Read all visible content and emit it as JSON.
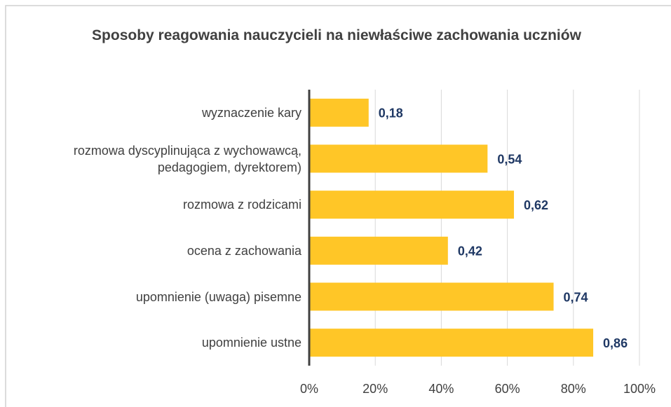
{
  "chart_data": {
    "type": "bar",
    "orientation": "horizontal",
    "title": "Sposoby reagowania nauczycieli na niewłaściwe zachowania uczniów",
    "categories": [
      "wyznaczenie kary",
      "rozmowa dyscyplinująca z wychowawcą, pedagogiem, dyrektorem)",
      "rozmowa z rodzicami",
      "ocena z zachowania",
      "upomnienie (uwaga) pisemne",
      "upomnienie ustne"
    ],
    "values": [
      0.18,
      0.54,
      0.62,
      0.42,
      0.74,
      0.86
    ],
    "value_labels": [
      "0,18",
      "0,54",
      "0,62",
      "0,42",
      "0,74",
      "0,86"
    ],
    "color": "#FFC627",
    "xlim": [
      0,
      1
    ],
    "xticks": [
      {
        "value": 0,
        "label": "0%"
      },
      {
        "value": 0.2,
        "label": "20%"
      },
      {
        "value": 0.4,
        "label": "40%"
      },
      {
        "value": 0.6,
        "label": "60%"
      },
      {
        "value": 0.8,
        "label": "80%"
      },
      {
        "value": 1,
        "label": "100%"
      }
    ],
    "grid": true
  }
}
